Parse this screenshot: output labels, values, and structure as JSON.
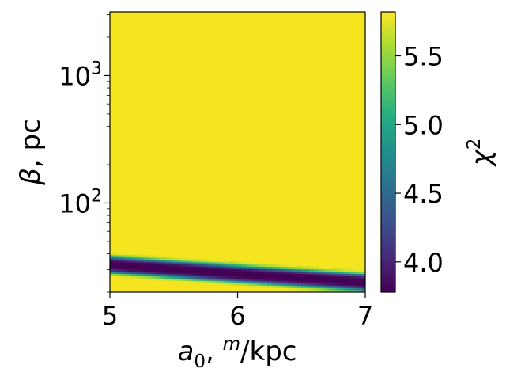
{
  "chart_data": {
    "type": "heatmap",
    "title": "",
    "x_axis": {
      "label_main": "a",
      "label_sub": "0",
      "label_sep": ", ",
      "label_sup": "m",
      "label_unit": "/kpc",
      "scale": "linear",
      "range": [
        5,
        7
      ],
      "ticks": [
        5,
        6,
        7
      ],
      "tick_labels": [
        "5",
        "6",
        "7"
      ]
    },
    "y_axis": {
      "label_main": "β",
      "label_rest": ", pc",
      "scale": "log",
      "range": [
        20,
        3160
      ],
      "major_ticks": [
        100,
        1000
      ],
      "tick_labels": [
        {
          "base": "10",
          "exp": "2"
        },
        {
          "base": "10",
          "exp": "3"
        }
      ]
    },
    "colorbar": {
      "label_main": "χ",
      "label_sup": "2",
      "colormap": "viridis",
      "range": [
        3.78,
        5.82
      ],
      "ticks": [
        4.0,
        4.5,
        5.0,
        5.5
      ],
      "tick_labels": [
        "4.0",
        "4.5",
        "5.0",
        "5.5"
      ]
    },
    "minimum_valley": {
      "x": [
        5,
        6,
        7
      ],
      "y": [
        33,
        28,
        24
      ],
      "chi2_min": 3.78,
      "chi2_plateau": 5.8
    },
    "grid": false,
    "legend": "none"
  }
}
